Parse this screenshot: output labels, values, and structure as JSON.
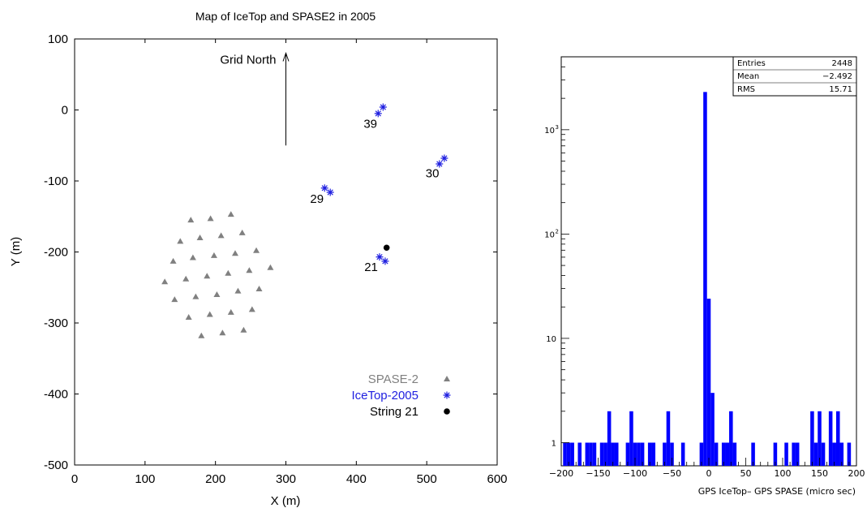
{
  "chart_data": [
    {
      "type": "scatter",
      "title": "Map of IceTop and SPASE2 in 2005",
      "xlabel": "X (m)",
      "ylabel": "Y (m)",
      "xlim": [
        0,
        600
      ],
      "ylim": [
        -500,
        100
      ],
      "xticks": [
        0,
        100,
        200,
        300,
        400,
        500,
        600
      ],
      "yticks": [
        -500,
        -400,
        -300,
        -200,
        -100,
        0,
        100
      ],
      "grid": false,
      "legend_position": "bottom-right",
      "arrow_label": "Grid North",
      "arrow": {
        "x": 300,
        "y_from": -50,
        "y_to": 80
      },
      "series": [
        {
          "name": "SPASE-2",
          "marker": "triangle",
          "color": "#808080",
          "points": [
            [
              165,
              -155
            ],
            [
              193,
              -153
            ],
            [
              222,
              -147
            ],
            [
              150,
              -185
            ],
            [
              178,
              -180
            ],
            [
              208,
              -177
            ],
            [
              238,
              -173
            ],
            [
              140,
              -213
            ],
            [
              168,
              -208
            ],
            [
              198,
              -205
            ],
            [
              228,
              -202
            ],
            [
              258,
              -198
            ],
            [
              128,
              -242
            ],
            [
              158,
              -238
            ],
            [
              188,
              -234
            ],
            [
              218,
              -230
            ],
            [
              248,
              -226
            ],
            [
              278,
              -222
            ],
            [
              142,
              -267
            ],
            [
              172,
              -263
            ],
            [
              202,
              -260
            ],
            [
              232,
              -255
            ],
            [
              262,
              -252
            ],
            [
              162,
              -292
            ],
            [
              192,
              -288
            ],
            [
              222,
              -285
            ],
            [
              252,
              -281
            ],
            [
              180,
              -318
            ],
            [
              210,
              -314
            ],
            [
              240,
              -310
            ]
          ]
        },
        {
          "name": "IceTop-2005",
          "marker": "asterisk",
          "color": "#1f1fe0",
          "points": [
            [
              431,
              -5
            ],
            [
              438,
              4
            ],
            [
              518,
              -76
            ],
            [
              525,
              -68
            ],
            [
              355,
              -110
            ],
            [
              363,
              -116
            ],
            [
              433,
              -207
            ],
            [
              441,
              -213
            ]
          ]
        },
        {
          "name": "String 21",
          "marker": "dot",
          "color": "#000000",
          "points": [
            [
              443,
              -194
            ]
          ]
        }
      ],
      "annotations": [
        {
          "text": "39",
          "x": 420,
          "y": -25
        },
        {
          "text": "30",
          "x": 508,
          "y": -95
        },
        {
          "text": "29",
          "x": 344,
          "y": -131
        },
        {
          "text": "21",
          "x": 421,
          "y": -227
        }
      ]
    },
    {
      "type": "bar",
      "title": "",
      "xlabel": "GPS IceTop– GPS SPASE (micro sec)",
      "ylabel": "",
      "xlim": [
        -200,
        200
      ],
      "ylim": [
        0.6,
        5000
      ],
      "yscale": "log",
      "color": "#0000ff",
      "bin_width": 5,
      "xticks": [
        -200,
        -150,
        -100,
        -50,
        0,
        50,
        100,
        150,
        200
      ],
      "yticks": [
        {
          "value": 1,
          "label": "1"
        },
        {
          "value": 10,
          "label": "10"
        },
        {
          "value": 100,
          "label": "10",
          "sup": "2"
        },
        {
          "value": 1000,
          "label": "10",
          "sup": "3"
        }
      ],
      "bins": [
        [
          -195,
          1
        ],
        [
          -190,
          1
        ],
        [
          -185,
          1
        ],
        [
          -175,
          1
        ],
        [
          -165,
          1
        ],
        [
          -160,
          1
        ],
        [
          -155,
          1
        ],
        [
          -145,
          1
        ],
        [
          -140,
          1
        ],
        [
          -135,
          2
        ],
        [
          -130,
          1
        ],
        [
          -125,
          1
        ],
        [
          -110,
          1
        ],
        [
          -105,
          2
        ],
        [
          -100,
          1
        ],
        [
          -95,
          1
        ],
        [
          -90,
          1
        ],
        [
          -80,
          1
        ],
        [
          -75,
          1
        ],
        [
          -60,
          1
        ],
        [
          -55,
          2
        ],
        [
          -50,
          1
        ],
        [
          -35,
          1
        ],
        [
          -10,
          1
        ],
        [
          -5,
          2300
        ],
        [
          0,
          24
        ],
        [
          5,
          3
        ],
        [
          10,
          1
        ],
        [
          20,
          1
        ],
        [
          25,
          1
        ],
        [
          30,
          2
        ],
        [
          35,
          1
        ],
        [
          60,
          1
        ],
        [
          90,
          1
        ],
        [
          105,
          1
        ],
        [
          115,
          1
        ],
        [
          120,
          1
        ],
        [
          140,
          2
        ],
        [
          145,
          1
        ],
        [
          150,
          2
        ],
        [
          155,
          1
        ],
        [
          165,
          2
        ],
        [
          170,
          1
        ],
        [
          175,
          2
        ],
        [
          180,
          1
        ],
        [
          190,
          1
        ]
      ],
      "stats": [
        {
          "label": "Entries",
          "value": "2448"
        },
        {
          "label": "Mean",
          "value": "−2.492"
        },
        {
          "label": "RMS",
          "value": "15.71"
        }
      ]
    }
  ]
}
